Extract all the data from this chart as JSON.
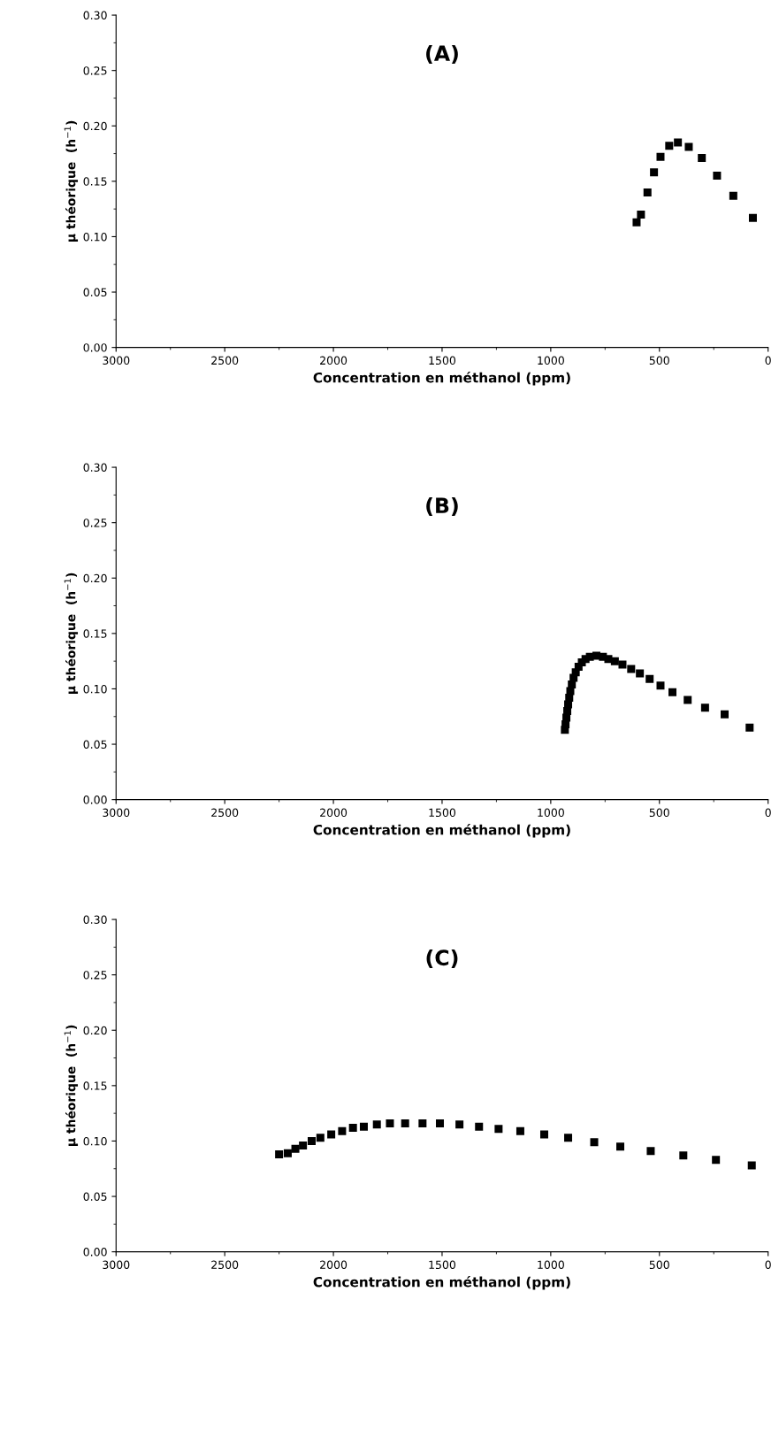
{
  "chart_data": [
    {
      "type": "scatter",
      "title": "(A)",
      "xlabel": "Concentration en méthanol (ppm)",
      "ylabel": "µ théorique  (h$^{−1}$)",
      "xlim": [
        3000,
        0
      ],
      "xticks": [
        3000,
        2500,
        2000,
        1500,
        1000,
        500,
        0
      ],
      "ylim": [
        0,
        0.3
      ],
      "yticks": [
        {
          "value": 0,
          "label": "0.00"
        },
        {
          "value": 0.05,
          "label": "0.05"
        },
        {
          "value": 0.1,
          "label": "0.10"
        },
        {
          "value": 0.15,
          "label": "0.15"
        },
        {
          "value": 0.2,
          "label": "0.20"
        },
        {
          "value": 0.25,
          "label": "0.25"
        },
        {
          "value": 0.3,
          "label": "0.30"
        }
      ],
      "marker": "square",
      "grid": false,
      "legend": false,
      "series": [
        {
          "color": "#000000",
          "x": [
            605,
            585,
            555,
            525,
            495,
            455,
            415,
            365,
            305,
            235,
            160,
            70
          ],
          "values": [
            0.113,
            0.12,
            0.14,
            0.158,
            0.172,
            0.182,
            0.185,
            0.181,
            0.171,
            0.155,
            0.137,
            0.117
          ]
        }
      ]
    },
    {
      "type": "scatter",
      "title": "(B)",
      "xlabel": "Concentration en méthanol (ppm)",
      "ylabel": "µ théorique  (h$^{−1}$)",
      "xlim": [
        3000,
        0
      ],
      "xticks": [
        3000,
        2500,
        2000,
        1500,
        1000,
        500,
        0
      ],
      "ylim": [
        0,
        0.3
      ],
      "yticks": [
        {
          "value": 0,
          "label": "0.00"
        },
        {
          "value": 0.05,
          "label": "0.05"
        },
        {
          "value": 0.1,
          "label": "0.10"
        },
        {
          "value": 0.15,
          "label": "0.15"
        },
        {
          "value": 0.2,
          "label": "0.20"
        },
        {
          "value": 0.25,
          "label": "0.25"
        },
        {
          "value": 0.3,
          "label": "0.30"
        }
      ],
      "marker": "square",
      "grid": false,
      "legend": false,
      "series": [
        {
          "color": "#000000",
          "x": [
            935,
            932,
            928,
            924,
            920,
            915,
            910,
            903,
            895,
            885,
            872,
            857,
            840,
            820,
            790,
            760,
            735,
            705,
            670,
            630,
            590,
            545,
            495,
            440,
            370,
            290,
            200,
            85
          ],
          "values": [
            0.063,
            0.068,
            0.074,
            0.08,
            0.086,
            0.092,
            0.098,
            0.104,
            0.11,
            0.115,
            0.12,
            0.124,
            0.127,
            0.129,
            0.13,
            0.129,
            0.127,
            0.125,
            0.122,
            0.118,
            0.114,
            0.109,
            0.103,
            0.097,
            0.09,
            0.083,
            0.077,
            0.065
          ]
        }
      ]
    },
    {
      "type": "scatter",
      "title": "(C)",
      "xlabel": "Concentration en méthanol (ppm)",
      "ylabel": "µ théorique  (h$^{−1}$)",
      "xlim": [
        3000,
        0
      ],
      "xticks": [
        3000,
        2500,
        2000,
        1500,
        1000,
        500,
        0
      ],
      "ylim": [
        0,
        0.3
      ],
      "yticks": [
        {
          "value": 0,
          "label": "0.00"
        },
        {
          "value": 0.05,
          "label": "0.05"
        },
        {
          "value": 0.1,
          "label": "0.10"
        },
        {
          "value": 0.15,
          "label": "0.15"
        },
        {
          "value": 0.2,
          "label": "0.20"
        },
        {
          "value": 0.25,
          "label": "0.25"
        },
        {
          "value": 0.3,
          "label": "0.30"
        }
      ],
      "marker": "square",
      "grid": false,
      "legend": false,
      "series": [
        {
          "color": "#000000",
          "x": [
            2250,
            2210,
            2175,
            2140,
            2100,
            2060,
            2010,
            1960,
            1910,
            1860,
            1800,
            1740,
            1670,
            1590,
            1510,
            1420,
            1330,
            1240,
            1140,
            1030,
            920,
            800,
            680,
            540,
            390,
            240,
            75
          ],
          "values": [
            0.088,
            0.089,
            0.093,
            0.096,
            0.1,
            0.103,
            0.106,
            0.109,
            0.112,
            0.113,
            0.115,
            0.116,
            0.116,
            0.116,
            0.116,
            0.115,
            0.113,
            0.111,
            0.109,
            0.106,
            0.103,
            0.099,
            0.095,
            0.091,
            0.087,
            0.083,
            0.078
          ]
        }
      ]
    }
  ]
}
